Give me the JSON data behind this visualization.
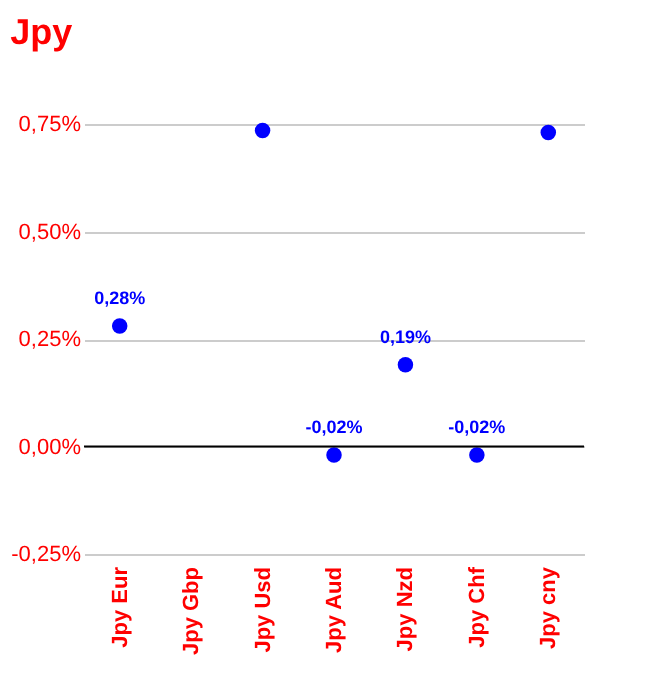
{
  "chart_data": {
    "type": "scatter",
    "title": "Jpy",
    "categories": [
      "Jpy Eur",
      "Jpy Gbp",
      "Jpy Usd",
      "Jpy Aud",
      "Jpy Nzd",
      "Jpy Chf",
      "Jpy cny"
    ],
    "series": [
      {
        "color": "#0000ff",
        "values": [
          0.28,
          null,
          0.735,
          -0.02,
          0.19,
          -0.02,
          0.73
        ],
        "value_labels": [
          "0,28%",
          null,
          null,
          "-0,02%",
          "0,19%",
          "-0,02%",
          null
        ]
      }
    ],
    "ylim": [
      -0.25,
      0.75
    ],
    "yticks": [
      {
        "value": -0.25,
        "label": "-0,25%"
      },
      {
        "value": 0,
        "label": "0,00%"
      },
      {
        "value": 0.25,
        "label": "0,25%"
      },
      {
        "value": 0.5,
        "label": "0,50%"
      },
      {
        "value": 0.75,
        "label": "0,75%"
      }
    ],
    "ref_lines": [
      {
        "axis": "y",
        "value": 0,
        "color": "#000000"
      }
    ],
    "grid": "y",
    "marker": "circle"
  }
}
